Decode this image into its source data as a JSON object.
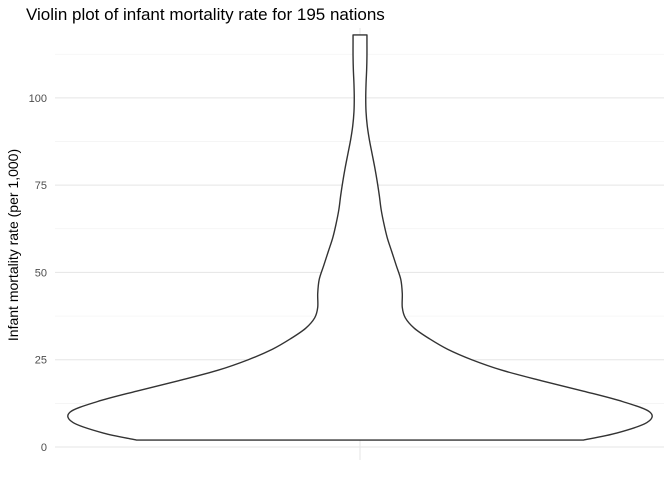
{
  "chart_data": {
    "type": "violin",
    "title": "Violin plot of infant mortality rate for 195 nations",
    "xlabel": "",
    "ylabel": "Infant mortality rate (per 1,000)",
    "ylim": [
      -2,
      120
    ],
    "yticks": [
      0,
      25,
      50,
      75,
      100
    ],
    "y_minor": [
      12.5,
      37.5,
      62.5,
      87.5,
      112.5
    ],
    "grid": true,
    "n": 195,
    "series": [
      {
        "y_min": 2,
        "y_max": 118,
        "density_profile": [
          {
            "y": 2,
            "width": 0.74
          },
          {
            "y": 4,
            "width": 0.85
          },
          {
            "y": 7,
            "width": 0.95
          },
          {
            "y": 10,
            "width": 0.96
          },
          {
            "y": 13,
            "width": 0.87
          },
          {
            "y": 16,
            "width": 0.74
          },
          {
            "y": 19,
            "width": 0.6
          },
          {
            "y": 22,
            "width": 0.47
          },
          {
            "y": 25,
            "width": 0.37
          },
          {
            "y": 28,
            "width": 0.29
          },
          {
            "y": 31,
            "width": 0.23
          },
          {
            "y": 34,
            "width": 0.18
          },
          {
            "y": 37,
            "width": 0.15
          },
          {
            "y": 40,
            "width": 0.14
          },
          {
            "y": 44,
            "width": 0.14
          },
          {
            "y": 48,
            "width": 0.135
          },
          {
            "y": 52,
            "width": 0.12
          },
          {
            "y": 56,
            "width": 0.105
          },
          {
            "y": 60,
            "width": 0.09
          },
          {
            "y": 64,
            "width": 0.079
          },
          {
            "y": 68,
            "width": 0.07
          },
          {
            "y": 72,
            "width": 0.064
          },
          {
            "y": 76,
            "width": 0.057
          },
          {
            "y": 80,
            "width": 0.049
          },
          {
            "y": 84,
            "width": 0.04
          },
          {
            "y": 88,
            "width": 0.031
          },
          {
            "y": 92,
            "width": 0.024
          },
          {
            "y": 96,
            "width": 0.02
          },
          {
            "y": 100,
            "width": 0.019
          },
          {
            "y": 104,
            "width": 0.02
          },
          {
            "y": 108,
            "width": 0.022
          },
          {
            "y": 112,
            "width": 0.023
          },
          {
            "y": 116,
            "width": 0.023
          },
          {
            "y": 118,
            "width": 0.023
          }
        ]
      }
    ]
  }
}
